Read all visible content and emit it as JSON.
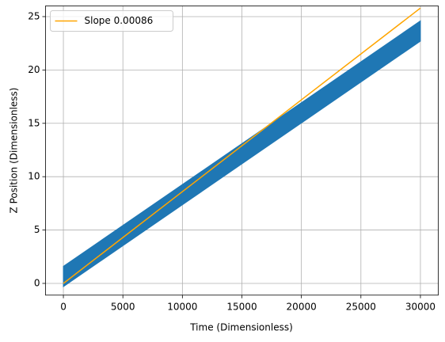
{
  "chart_data": {
    "type": "line",
    "xlabel": "Time (Dimensionless)",
    "ylabel": "Z Position (Dimensionless)",
    "xlim": [
      -1500,
      31500
    ],
    "ylim": [
      -1.1,
      26
    ],
    "xticks": [
      0,
      5000,
      10000,
      15000,
      20000,
      25000,
      30000
    ],
    "yticks": [
      0,
      5,
      10,
      15,
      20,
      25
    ],
    "grid": true,
    "legend": "upper left",
    "band": {
      "color": "#1f77b4",
      "x": [
        0,
        15000,
        30000
      ],
      "lower": [
        -0.3,
        11.2,
        22.7
      ],
      "upper": [
        1.6,
        13.1,
        24.6
      ]
    },
    "series": [
      {
        "name": "Slope 0.00086",
        "color": "#ffa500",
        "x": [
          0,
          30000
        ],
        "values": [
          0,
          25.8
        ]
      }
    ]
  }
}
